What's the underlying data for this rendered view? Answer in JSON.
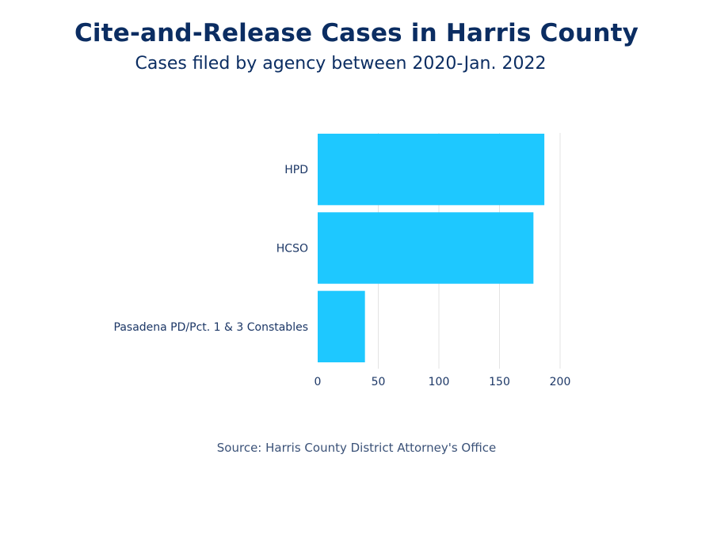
{
  "title": "Cite-and-Release Cases in Harris County",
  "subtitle": "Cases filed by agency between 2020-Jan. 2022",
  "source": "Source: Harris County District Attorney's Office",
  "chart_data": {
    "type": "bar",
    "orientation": "horizontal",
    "categories": [
      "HPD",
      "HCSO",
      "Pasadena PD/Pct. 1 & 3 Constables"
    ],
    "values": [
      187,
      178,
      39
    ],
    "xlabel": "",
    "ylabel": "",
    "xlim": [
      0,
      200
    ],
    "xticks": [
      0,
      50,
      100,
      150,
      200
    ],
    "grid": true,
    "bar_color": "#1ec8ff",
    "gridline_color": "#e3e3e3"
  }
}
